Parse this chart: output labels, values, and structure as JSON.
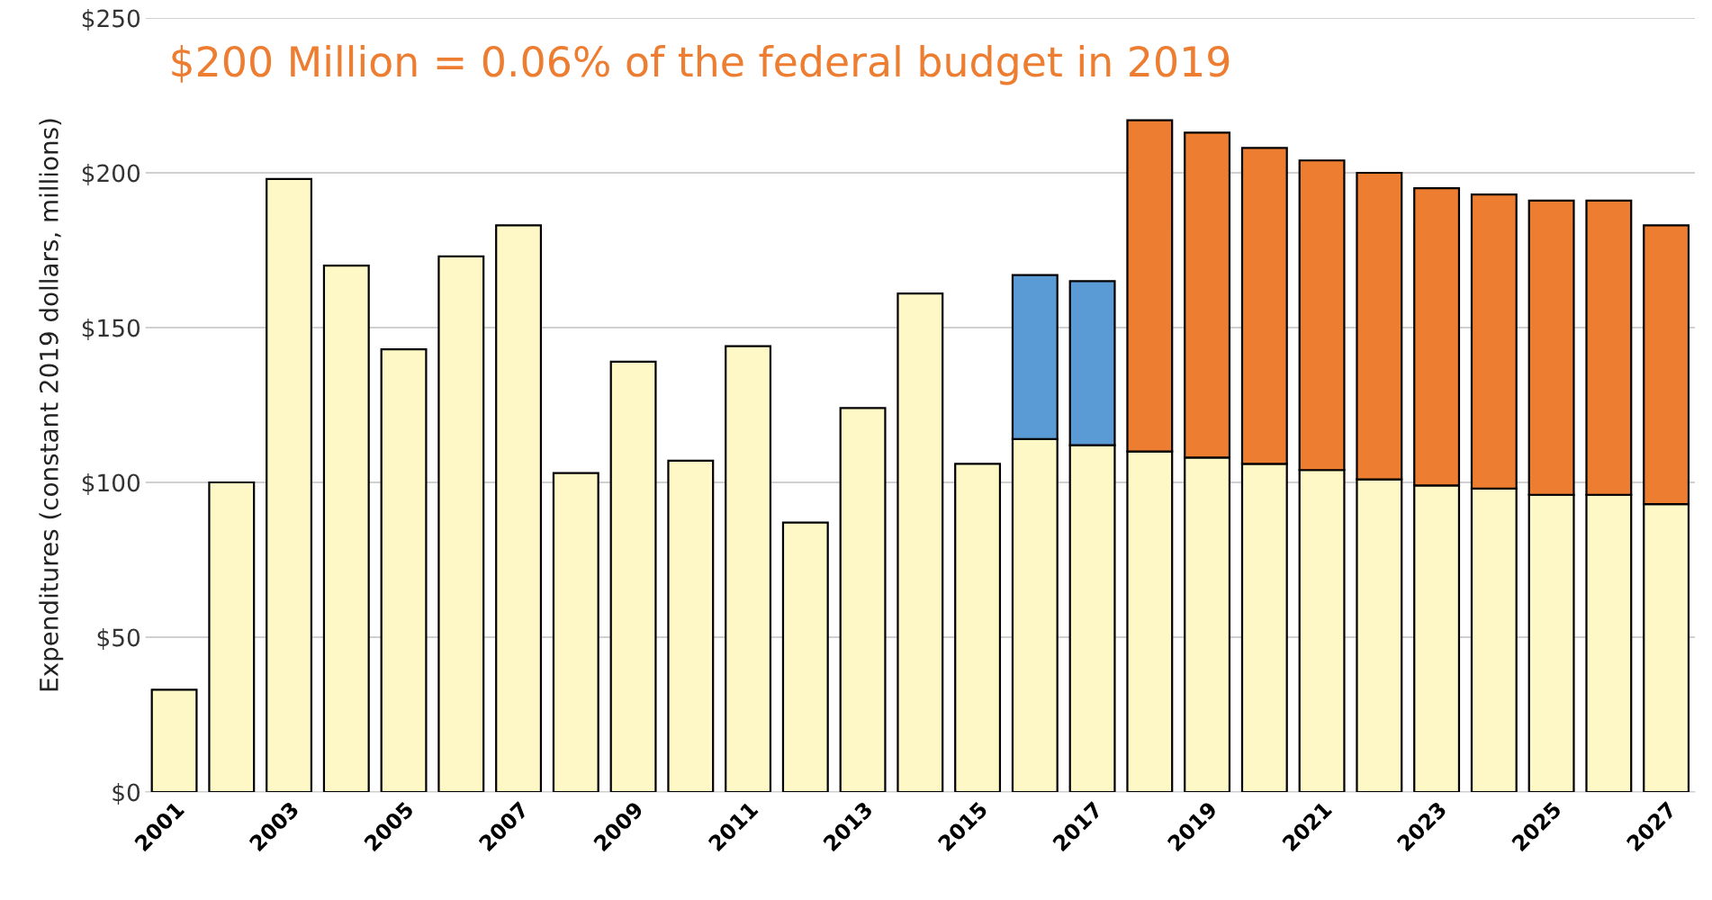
{
  "chart_data": {
    "type": "bar",
    "stacked": true,
    "annotations": [
      "$200 Million = 0.06% of the federal budget in 2019"
    ],
    "ylabel": "Expenditures (constant 2019 dollars, millions)",
    "categories": [
      "2001",
      null,
      "2003",
      null,
      "2005",
      null,
      "2007",
      null,
      "2009",
      null,
      "2011",
      null,
      "2013",
      null,
      "2015",
      null,
      "2017",
      null,
      "2019",
      null,
      "2021",
      null,
      "2023",
      null,
      "2025",
      null,
      "2027"
    ],
    "series": [
      {
        "color": "#fdf8c6",
        "values": [
          33,
          100,
          198,
          170,
          143,
          173,
          183,
          103,
          139,
          107,
          144,
          87,
          124,
          161,
          106,
          114,
          112,
          110,
          108,
          106,
          104,
          101,
          99,
          98,
          96,
          96,
          93
        ]
      },
      {
        "color": "#5b9bd5",
        "values": [
          null,
          null,
          null,
          null,
          null,
          null,
          null,
          null,
          null,
          null,
          null,
          null,
          null,
          null,
          null,
          53,
          53,
          null,
          null,
          null,
          null,
          null,
          null,
          null,
          null,
          null,
          null
        ]
      },
      {
        "color": "#ed7d31",
        "values": [
          null,
          null,
          null,
          null,
          null,
          null,
          null,
          null,
          null,
          null,
          null,
          null,
          null,
          null,
          null,
          null,
          null,
          107,
          105,
          102,
          100,
          99,
          96,
          95,
          95,
          95,
          90
        ]
      }
    ],
    "ylim": [
      0,
      250
    ],
    "yticks": [
      {
        "value": 0,
        "label": "$0"
      },
      {
        "value": 50,
        "label": "$50"
      },
      {
        "value": 100,
        "label": "$100"
      },
      {
        "value": 150,
        "label": "$150"
      },
      {
        "value": 200,
        "label": "$200"
      },
      {
        "value": 250,
        "label": "$250"
      }
    ],
    "grid": "y"
  }
}
